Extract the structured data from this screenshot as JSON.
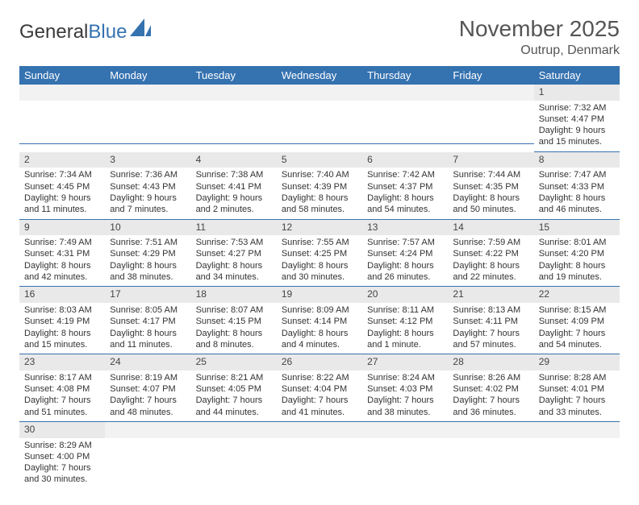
{
  "logo": {
    "text1": "General",
    "text2": "Blue"
  },
  "title": "November 2025",
  "location": "Outrup, Denmark",
  "weekdays": [
    "Sunday",
    "Monday",
    "Tuesday",
    "Wednesday",
    "Thursday",
    "Friday",
    "Saturday"
  ],
  "colors": {
    "header_bg": "#3572b0",
    "header_fg": "#ffffff",
    "daynum_bg": "#e9e9e9",
    "border": "#3572b0"
  },
  "weeks": [
    [
      null,
      null,
      null,
      null,
      null,
      null,
      {
        "n": "1",
        "sr": "Sunrise: 7:32 AM",
        "ss": "Sunset: 4:47 PM",
        "dl1": "Daylight: 9 hours",
        "dl2": "and 15 minutes."
      }
    ],
    [
      {
        "n": "2",
        "sr": "Sunrise: 7:34 AM",
        "ss": "Sunset: 4:45 PM",
        "dl1": "Daylight: 9 hours",
        "dl2": "and 11 minutes."
      },
      {
        "n": "3",
        "sr": "Sunrise: 7:36 AM",
        "ss": "Sunset: 4:43 PM",
        "dl1": "Daylight: 9 hours",
        "dl2": "and 7 minutes."
      },
      {
        "n": "4",
        "sr": "Sunrise: 7:38 AM",
        "ss": "Sunset: 4:41 PM",
        "dl1": "Daylight: 9 hours",
        "dl2": "and 2 minutes."
      },
      {
        "n": "5",
        "sr": "Sunrise: 7:40 AM",
        "ss": "Sunset: 4:39 PM",
        "dl1": "Daylight: 8 hours",
        "dl2": "and 58 minutes."
      },
      {
        "n": "6",
        "sr": "Sunrise: 7:42 AM",
        "ss": "Sunset: 4:37 PM",
        "dl1": "Daylight: 8 hours",
        "dl2": "and 54 minutes."
      },
      {
        "n": "7",
        "sr": "Sunrise: 7:44 AM",
        "ss": "Sunset: 4:35 PM",
        "dl1": "Daylight: 8 hours",
        "dl2": "and 50 minutes."
      },
      {
        "n": "8",
        "sr": "Sunrise: 7:47 AM",
        "ss": "Sunset: 4:33 PM",
        "dl1": "Daylight: 8 hours",
        "dl2": "and 46 minutes."
      }
    ],
    [
      {
        "n": "9",
        "sr": "Sunrise: 7:49 AM",
        "ss": "Sunset: 4:31 PM",
        "dl1": "Daylight: 8 hours",
        "dl2": "and 42 minutes."
      },
      {
        "n": "10",
        "sr": "Sunrise: 7:51 AM",
        "ss": "Sunset: 4:29 PM",
        "dl1": "Daylight: 8 hours",
        "dl2": "and 38 minutes."
      },
      {
        "n": "11",
        "sr": "Sunrise: 7:53 AM",
        "ss": "Sunset: 4:27 PM",
        "dl1": "Daylight: 8 hours",
        "dl2": "and 34 minutes."
      },
      {
        "n": "12",
        "sr": "Sunrise: 7:55 AM",
        "ss": "Sunset: 4:25 PM",
        "dl1": "Daylight: 8 hours",
        "dl2": "and 30 minutes."
      },
      {
        "n": "13",
        "sr": "Sunrise: 7:57 AM",
        "ss": "Sunset: 4:24 PM",
        "dl1": "Daylight: 8 hours",
        "dl2": "and 26 minutes."
      },
      {
        "n": "14",
        "sr": "Sunrise: 7:59 AM",
        "ss": "Sunset: 4:22 PM",
        "dl1": "Daylight: 8 hours",
        "dl2": "and 22 minutes."
      },
      {
        "n": "15",
        "sr": "Sunrise: 8:01 AM",
        "ss": "Sunset: 4:20 PM",
        "dl1": "Daylight: 8 hours",
        "dl2": "and 19 minutes."
      }
    ],
    [
      {
        "n": "16",
        "sr": "Sunrise: 8:03 AM",
        "ss": "Sunset: 4:19 PM",
        "dl1": "Daylight: 8 hours",
        "dl2": "and 15 minutes."
      },
      {
        "n": "17",
        "sr": "Sunrise: 8:05 AM",
        "ss": "Sunset: 4:17 PM",
        "dl1": "Daylight: 8 hours",
        "dl2": "and 11 minutes."
      },
      {
        "n": "18",
        "sr": "Sunrise: 8:07 AM",
        "ss": "Sunset: 4:15 PM",
        "dl1": "Daylight: 8 hours",
        "dl2": "and 8 minutes."
      },
      {
        "n": "19",
        "sr": "Sunrise: 8:09 AM",
        "ss": "Sunset: 4:14 PM",
        "dl1": "Daylight: 8 hours",
        "dl2": "and 4 minutes."
      },
      {
        "n": "20",
        "sr": "Sunrise: 8:11 AM",
        "ss": "Sunset: 4:12 PM",
        "dl1": "Daylight: 8 hours",
        "dl2": "and 1 minute."
      },
      {
        "n": "21",
        "sr": "Sunrise: 8:13 AM",
        "ss": "Sunset: 4:11 PM",
        "dl1": "Daylight: 7 hours",
        "dl2": "and 57 minutes."
      },
      {
        "n": "22",
        "sr": "Sunrise: 8:15 AM",
        "ss": "Sunset: 4:09 PM",
        "dl1": "Daylight: 7 hours",
        "dl2": "and 54 minutes."
      }
    ],
    [
      {
        "n": "23",
        "sr": "Sunrise: 8:17 AM",
        "ss": "Sunset: 4:08 PM",
        "dl1": "Daylight: 7 hours",
        "dl2": "and 51 minutes."
      },
      {
        "n": "24",
        "sr": "Sunrise: 8:19 AM",
        "ss": "Sunset: 4:07 PM",
        "dl1": "Daylight: 7 hours",
        "dl2": "and 48 minutes."
      },
      {
        "n": "25",
        "sr": "Sunrise: 8:21 AM",
        "ss": "Sunset: 4:05 PM",
        "dl1": "Daylight: 7 hours",
        "dl2": "and 44 minutes."
      },
      {
        "n": "26",
        "sr": "Sunrise: 8:22 AM",
        "ss": "Sunset: 4:04 PM",
        "dl1": "Daylight: 7 hours",
        "dl2": "and 41 minutes."
      },
      {
        "n": "27",
        "sr": "Sunrise: 8:24 AM",
        "ss": "Sunset: 4:03 PM",
        "dl1": "Daylight: 7 hours",
        "dl2": "and 38 minutes."
      },
      {
        "n": "28",
        "sr": "Sunrise: 8:26 AM",
        "ss": "Sunset: 4:02 PM",
        "dl1": "Daylight: 7 hours",
        "dl2": "and 36 minutes."
      },
      {
        "n": "29",
        "sr": "Sunrise: 8:28 AM",
        "ss": "Sunset: 4:01 PM",
        "dl1": "Daylight: 7 hours",
        "dl2": "and 33 minutes."
      }
    ],
    [
      {
        "n": "30",
        "sr": "Sunrise: 8:29 AM",
        "ss": "Sunset: 4:00 PM",
        "dl1": "Daylight: 7 hours",
        "dl2": "and 30 minutes.",
        "last": true
      },
      null,
      null,
      null,
      null,
      null,
      null
    ]
  ]
}
